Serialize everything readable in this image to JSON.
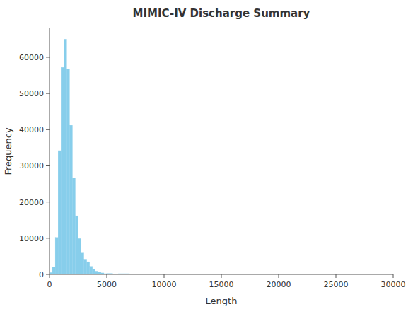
{
  "chart_data": {
    "type": "histogram",
    "title": "MIMIC-IV Discharge Summary",
    "x_label": "Length",
    "y_label": "Frequency",
    "bins": [
      0,
      250,
      500,
      750,
      1000,
      1250,
      1500,
      1750,
      2000,
      2250,
      2500,
      2750,
      3000,
      3250,
      3500,
      3750,
      4000,
      4250,
      4500,
      4750,
      5000,
      5500,
      6000,
      7000,
      8000,
      9000,
      10000,
      12000,
      15000,
      20000,
      30000
    ],
    "values": [
      500,
      2000,
      10200,
      34200,
      57200,
      65000,
      56800,
      41200,
      26700,
      16200,
      9900,
      5900,
      4200,
      3500,
      2200,
      1500,
      900,
      600,
      400,
      200,
      250,
      150,
      200,
      100,
      80,
      60,
      80,
      40,
      20,
      10
    ],
    "color": "#87CEEB",
    "xlim": [
      0,
      30000
    ],
    "ylim": [
      0,
      68000
    ],
    "xticks": [
      0,
      5000,
      10000,
      15000,
      20000,
      25000,
      30000
    ],
    "yticks": [
      0,
      10000,
      20000,
      30000,
      40000,
      50000,
      60000
    ]
  }
}
